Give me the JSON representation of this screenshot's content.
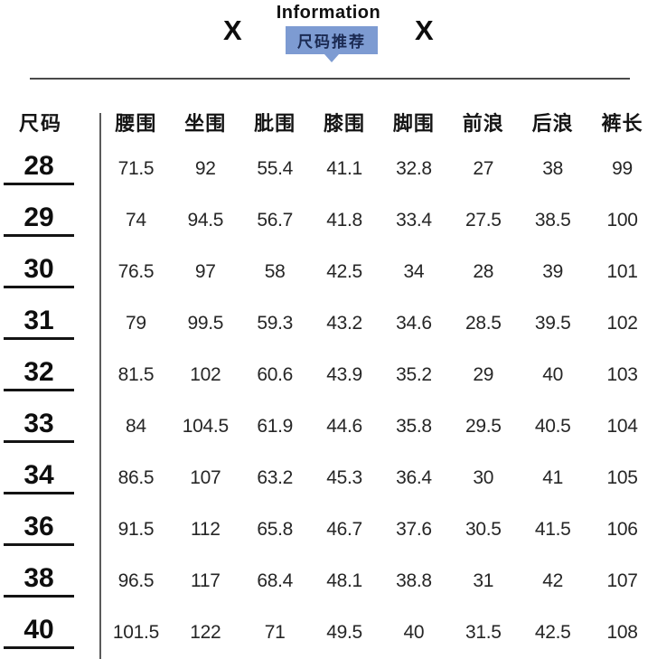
{
  "header": {
    "title": "Information",
    "left_mark": "X",
    "right_mark": "X",
    "badge_label": "尺码推荐"
  },
  "colors": {
    "badge_background": "#7d9bd2",
    "badge_text": "#1b2a52",
    "divider_line": "#4a4a4a",
    "text": "#141414"
  },
  "chart_data": {
    "type": "table",
    "title": "Information",
    "badge": "尺码推荐",
    "columns": [
      "尺码",
      "腰围",
      "坐围",
      "肶围",
      "膝围",
      "脚围",
      "前浪",
      "后浪",
      "裤长"
    ],
    "rows": [
      [
        "28",
        "71.5",
        "92",
        "55.4",
        "41.1",
        "32.8",
        "27",
        "38",
        "99"
      ],
      [
        "29",
        "74",
        "94.5",
        "56.7",
        "41.8",
        "33.4",
        "27.5",
        "38.5",
        "100"
      ],
      [
        "30",
        "76.5",
        "97",
        "58",
        "42.5",
        "34",
        "28",
        "39",
        "101"
      ],
      [
        "31",
        "79",
        "99.5",
        "59.3",
        "43.2",
        "34.6",
        "28.5",
        "39.5",
        "102"
      ],
      [
        "32",
        "81.5",
        "102",
        "60.6",
        "43.9",
        "35.2",
        "29",
        "40",
        "103"
      ],
      [
        "33",
        "84",
        "104.5",
        "61.9",
        "44.6",
        "35.8",
        "29.5",
        "40.5",
        "104"
      ],
      [
        "34",
        "86.5",
        "107",
        "63.2",
        "45.3",
        "36.4",
        "30",
        "41",
        "105"
      ],
      [
        "36",
        "91.5",
        "112",
        "65.8",
        "46.7",
        "37.6",
        "30.5",
        "41.5",
        "106"
      ],
      [
        "38",
        "96.5",
        "117",
        "68.4",
        "48.1",
        "38.8",
        "31",
        "42",
        "107"
      ],
      [
        "40",
        "101.5",
        "122",
        "71",
        "49.5",
        "40",
        "31.5",
        "42.5",
        "108"
      ]
    ]
  }
}
